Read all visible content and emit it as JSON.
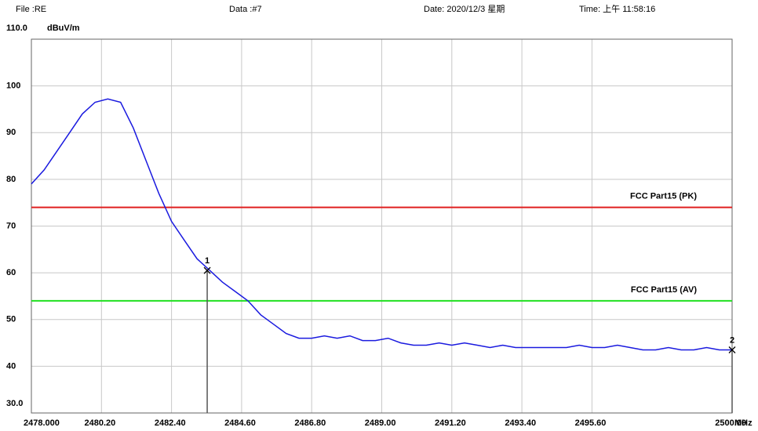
{
  "chart_data": {
    "type": "line",
    "file": "File :RE",
    "data": "Data :#7",
    "date": "Date: 2020/12/3 星期",
    "time": "Time: 上午 11:58:16",
    "ylabel": "dBuV/m",
    "xlabel": "MHz",
    "color": "#1a1adf",
    "grid": true,
    "xlim": [
      2478,
      2500
    ],
    "ylim": [
      30,
      110
    ],
    "xticks": [
      {
        "value": 2478,
        "label": "2478.000"
      },
      {
        "value": 2480.2,
        "label": "2480.20"
      },
      {
        "value": 2482.4,
        "label": "2482.40"
      },
      {
        "value": 2484.6,
        "label": "2484.60"
      },
      {
        "value": 2486.8,
        "label": "2486.80"
      },
      {
        "value": 2489,
        "label": "2489.00"
      },
      {
        "value": 2491.2,
        "label": "2491.20"
      },
      {
        "value": 2493.4,
        "label": "2493.40"
      },
      {
        "value": 2495.6,
        "label": "2495.60"
      },
      {
        "value": 2500,
        "label": "2500.00"
      }
    ],
    "yticks": [
      {
        "value": 30,
        "label": "30.0"
      },
      40,
      50,
      60,
      70,
      80,
      90,
      100,
      {
        "value": 110,
        "label": "110.0"
      }
    ],
    "x": [
      2478.0,
      2478.4,
      2478.8,
      2479.2,
      2479.6,
      2480.0,
      2480.4,
      2480.8,
      2481.2,
      2481.6,
      2482.0,
      2482.4,
      2482.8,
      2483.2,
      2483.6,
      2484.0,
      2484.4,
      2484.8,
      2485.2,
      2485.6,
      2486.0,
      2486.4,
      2486.8,
      2487.2,
      2487.6,
      2488.0,
      2488.4,
      2488.8,
      2489.2,
      2489.6,
      2490.0,
      2490.4,
      2490.8,
      2491.2,
      2491.6,
      2492.0,
      2492.4,
      2492.8,
      2493.2,
      2493.6,
      2494.0,
      2494.4,
      2494.8,
      2495.2,
      2495.6,
      2496.0,
      2496.4,
      2496.8,
      2497.2,
      2497.6,
      2498.0,
      2498.4,
      2498.8,
      2499.2,
      2499.6,
      2500.0
    ],
    "values": [
      79,
      82,
      86,
      90,
      94,
      96.5,
      97.2,
      96.5,
      91,
      84,
      77,
      71,
      67,
      63,
      60.5,
      58,
      56,
      54,
      51,
      49,
      47,
      46,
      46,
      46.5,
      46,
      46.5,
      45.5,
      45.5,
      46,
      45,
      44.5,
      44.5,
      45,
      44.5,
      45,
      44.5,
      44,
      44.5,
      44,
      44,
      44,
      44,
      44,
      44.5,
      44,
      44,
      44.5,
      44,
      43.5,
      43.5,
      44,
      43.5,
      43.5,
      44,
      43.5,
      43.5
    ],
    "limits": [
      {
        "name": "FCC Part15 (PK)",
        "value": 74,
        "color": "#e02020"
      },
      {
        "name": "FCC Part15 (AV)",
        "value": 54,
        "color": "#20e020"
      }
    ],
    "markers": [
      {
        "label": "1",
        "x": 2483.52,
        "y": 60.5
      },
      {
        "label": "2",
        "x": 2500,
        "y": 43.5
      }
    ]
  }
}
